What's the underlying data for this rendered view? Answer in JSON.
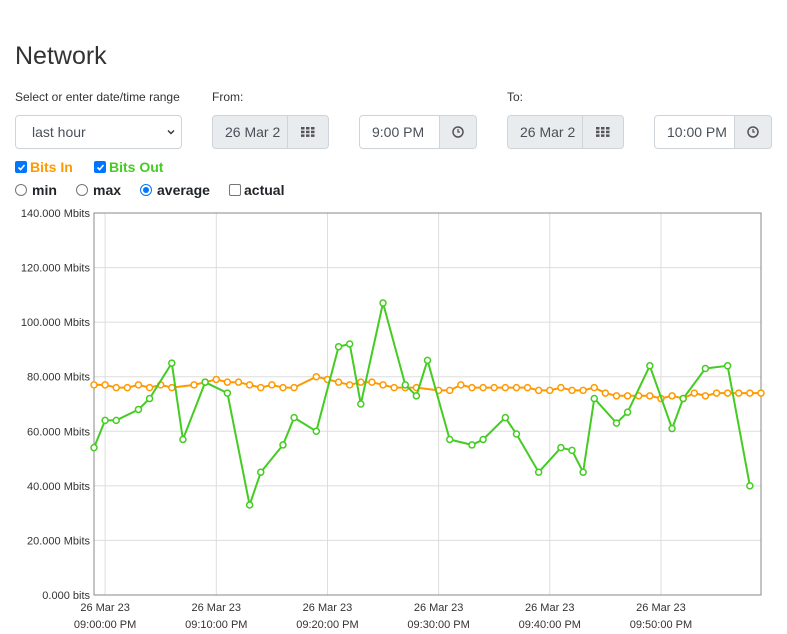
{
  "page": {
    "title": "Network"
  },
  "range": {
    "label": "Select or enter date/time range",
    "selected": "last hour",
    "from_label": "From:",
    "from_date": "26 Mar 2",
    "from_time": "9:00 PM",
    "to_label": "To:",
    "to_date": "26 Mar 2",
    "to_time": "10:00 PM"
  },
  "series_toggles": [
    {
      "label": "Bits In",
      "checked": true,
      "color": "#ff9900"
    },
    {
      "label": "Bits Out",
      "checked": true,
      "color": "#44cc22"
    }
  ],
  "aggregation": {
    "options": [
      "min",
      "max",
      "average",
      "actual"
    ],
    "selected": "average",
    "actual_checked": false
  },
  "icons": {
    "date_picker": "calendar-grid-icon",
    "time_picker": "clock-icon"
  },
  "chart_data": {
    "type": "line",
    "ylim": [
      0,
      140
    ],
    "y_unit": "Mbits",
    "y_ticks": [
      "0.000 bits",
      "20.000 Mbits",
      "40.000 Mbits",
      "60.000 Mbits",
      "80.000 Mbits",
      "100.000 Mbits",
      "120.000 Mbits",
      "140.000 Mbits"
    ],
    "x_ticks": [
      {
        "date": "26 Mar 23",
        "time": "09:00:00 PM"
      },
      {
        "date": "26 Mar 23",
        "time": "09:10:00 PM"
      },
      {
        "date": "26 Mar 23",
        "time": "09:20:00 PM"
      },
      {
        "date": "26 Mar 23",
        "time": "09:30:00 PM"
      },
      {
        "date": "26 Mar 23",
        "time": "09:40:00 PM"
      },
      {
        "date": "26 Mar 23",
        "time": "09:50:00 PM"
      }
    ],
    "x_unit_minutes": "minutes after 09:00:00 PM",
    "grid": true,
    "series": [
      {
        "name": "Bits In",
        "color": "#ff9900",
        "points": [
          [
            -1,
            77
          ],
          [
            0,
            77
          ],
          [
            1,
            76
          ],
          [
            2,
            76
          ],
          [
            3,
            77
          ],
          [
            4,
            76
          ],
          [
            5,
            77
          ],
          [
            6,
            76
          ],
          [
            8,
            77
          ],
          [
            9,
            78
          ],
          [
            10,
            79
          ],
          [
            11,
            78
          ],
          [
            12,
            78
          ],
          [
            13,
            77
          ],
          [
            14,
            76
          ],
          [
            15,
            77
          ],
          [
            16,
            76
          ],
          [
            17,
            76
          ],
          [
            19,
            80
          ],
          [
            20,
            79
          ],
          [
            21,
            78
          ],
          [
            22,
            77
          ],
          [
            23,
            78
          ],
          [
            24,
            78
          ],
          [
            25,
            77
          ],
          [
            26,
            76
          ],
          [
            27,
            76
          ],
          [
            28,
            76
          ],
          [
            30,
            75
          ],
          [
            31,
            75
          ],
          [
            32,
            77
          ],
          [
            33,
            76
          ],
          [
            34,
            76
          ],
          [
            35,
            76
          ],
          [
            36,
            76
          ],
          [
            37,
            76
          ],
          [
            38,
            76
          ],
          [
            39,
            75
          ],
          [
            40,
            75
          ],
          [
            41,
            76
          ],
          [
            42,
            75
          ],
          [
            43,
            75
          ],
          [
            44,
            76
          ],
          [
            45,
            74
          ],
          [
            46,
            73
          ],
          [
            47,
            73
          ],
          [
            48,
            73
          ],
          [
            49,
            73
          ],
          [
            50,
            72
          ],
          [
            51,
            73
          ],
          [
            52,
            72
          ],
          [
            53,
            74
          ],
          [
            54,
            73
          ],
          [
            55,
            74
          ],
          [
            56,
            74
          ],
          [
            57,
            74
          ],
          [
            58,
            74
          ],
          [
            59,
            74
          ]
        ]
      },
      {
        "name": "Bits Out",
        "color": "#44cc22",
        "points": [
          [
            -1,
            54
          ],
          [
            0,
            64
          ],
          [
            1,
            64
          ],
          [
            3,
            68
          ],
          [
            4,
            72
          ],
          [
            6,
            85
          ],
          [
            7,
            57
          ],
          [
            9,
            78
          ],
          [
            11,
            74
          ],
          [
            13,
            33
          ],
          [
            14,
            45
          ],
          [
            16,
            55
          ],
          [
            17,
            65
          ],
          [
            19,
            60
          ],
          [
            21,
            91
          ],
          [
            22,
            92
          ],
          [
            23,
            70
          ],
          [
            25,
            107
          ],
          [
            27,
            77
          ],
          [
            28,
            73
          ],
          [
            29,
            86
          ],
          [
            31,
            57
          ],
          [
            33,
            55
          ],
          [
            34,
            57
          ],
          [
            36,
            65
          ],
          [
            37,
            59
          ],
          [
            39,
            45
          ],
          [
            41,
            54
          ],
          [
            42,
            53
          ],
          [
            43,
            45
          ],
          [
            44,
            72
          ],
          [
            46,
            63
          ],
          [
            47,
            67
          ],
          [
            49,
            84
          ],
          [
            51,
            61
          ],
          [
            52,
            72
          ],
          [
            54,
            83
          ],
          [
            56,
            84
          ],
          [
            58,
            40
          ]
        ]
      }
    ]
  }
}
